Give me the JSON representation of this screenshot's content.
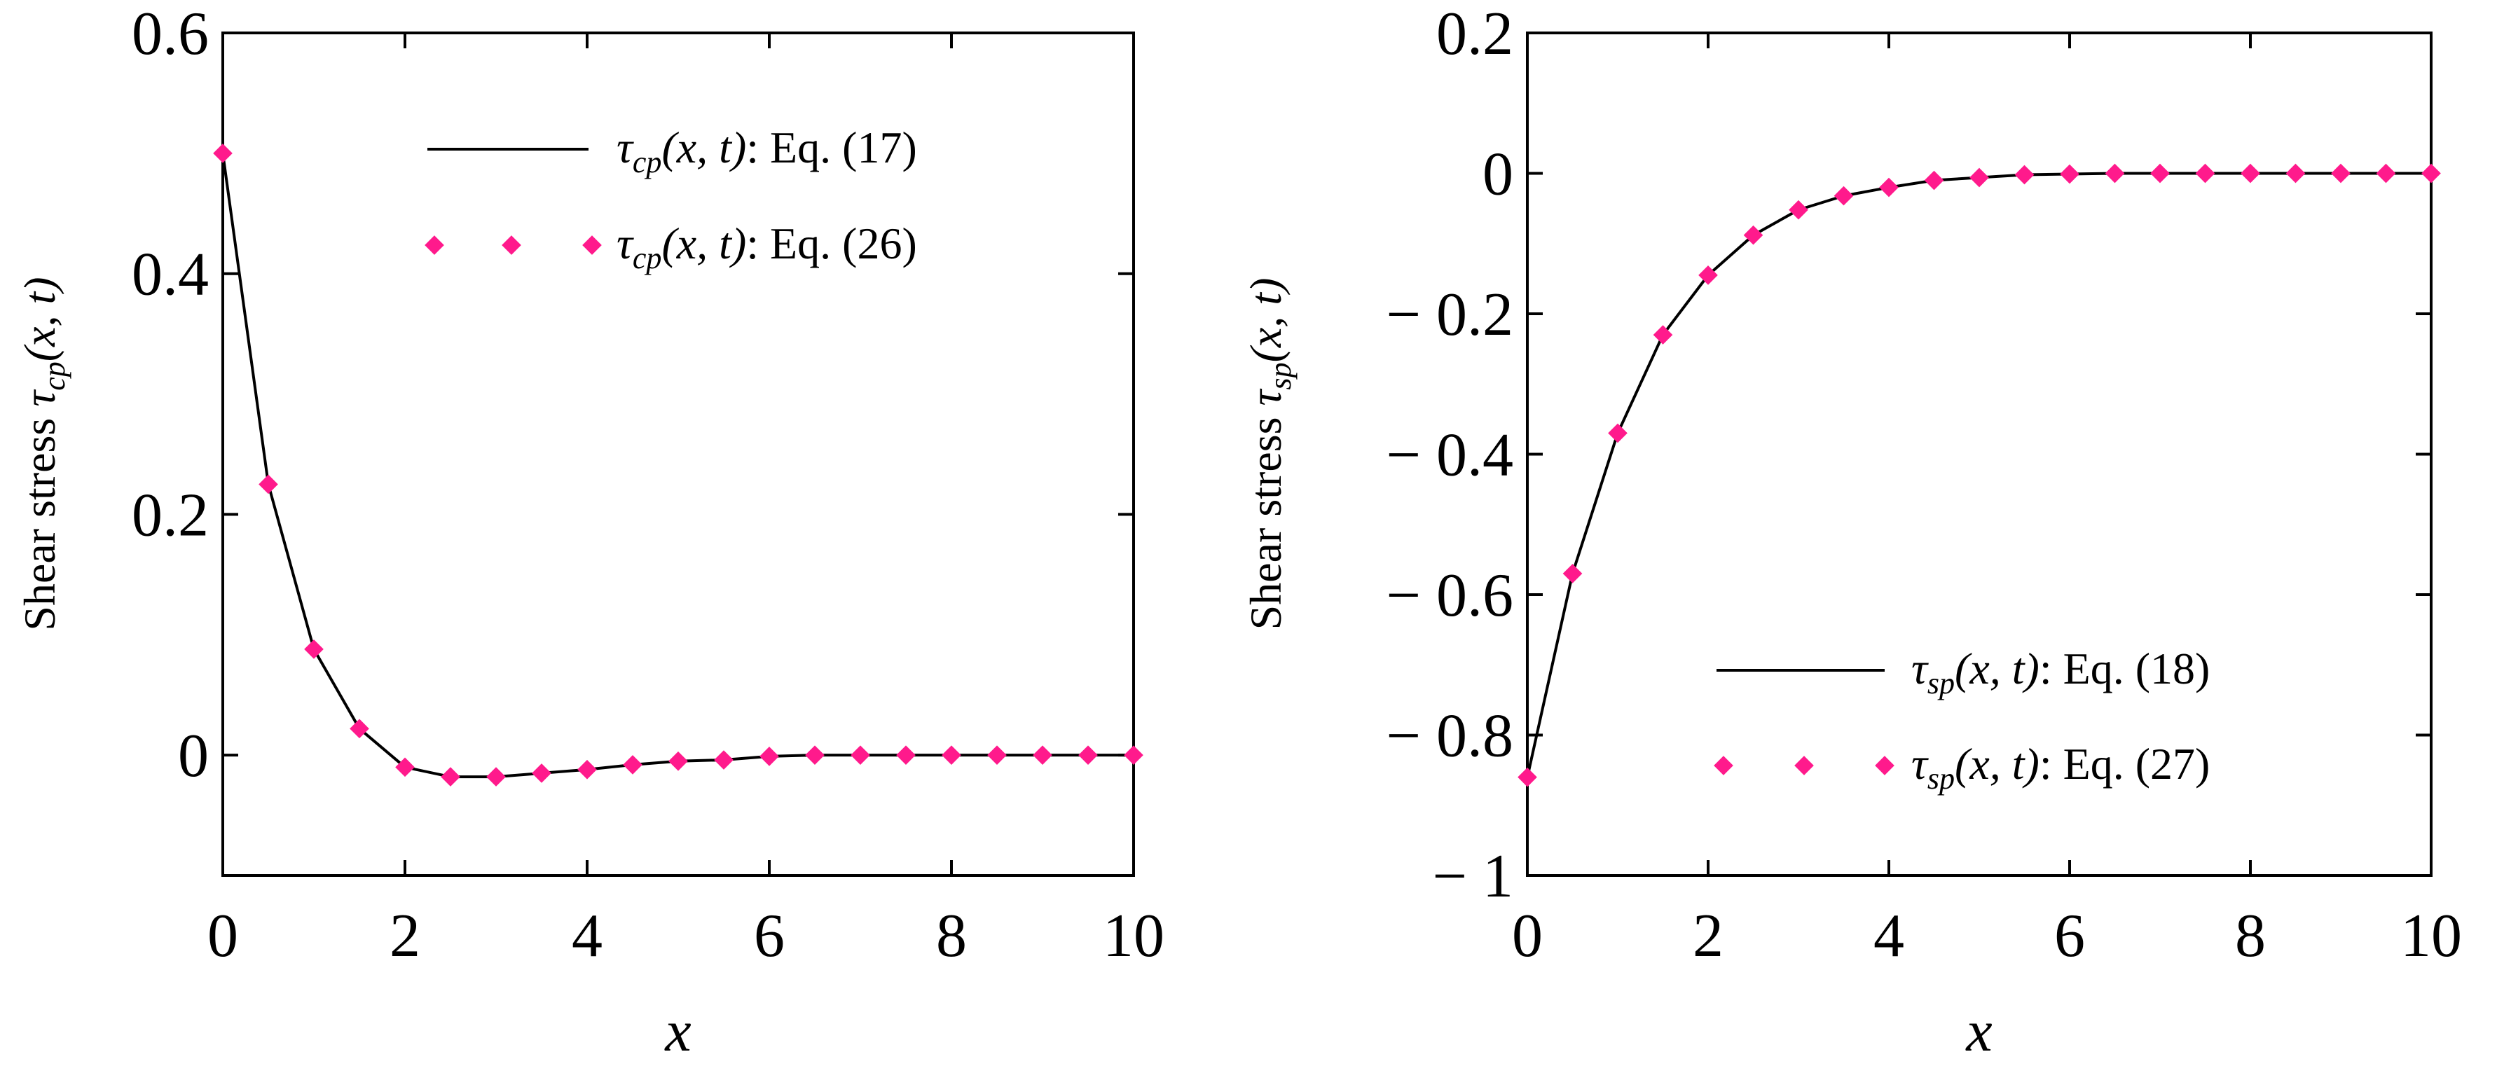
{
  "marker_color": "#ff1a8c",
  "line_color": "#000000",
  "chart_data": [
    {
      "type": "line",
      "xlabel": "x",
      "ylabel": {
        "prefix": "Shear stress ",
        "symbol": "τ",
        "sub": "cp",
        "args": "(x, t)"
      },
      "xlim": [
        0,
        10
      ],
      "ylim": [
        -0.1,
        0.6
      ],
      "xticks": [
        0,
        2,
        4,
        6,
        8,
        10
      ],
      "yticks": [
        0,
        0.2,
        0.4,
        0.6
      ],
      "xtick_labels": [
        "0",
        "2",
        "4",
        "6",
        "8",
        "10"
      ],
      "ytick_labels": [
        "0",
        "0.2",
        "0.4",
        "0.6"
      ],
      "legend_position": "top-right",
      "series": [
        {
          "name": "τcp(x,t): Eq. (17)",
          "legend": {
            "symbol": "τ",
            "sub": "cp",
            "args": "(x, t)",
            "suffix": ": Eq. (17)"
          },
          "style": "solid-line",
          "x": [
            0,
            0.5,
            1,
            1.5,
            2,
            2.5,
            3,
            3.5,
            4,
            4.5,
            5,
            5.5,
            6,
            6.5,
            7,
            7.5,
            8,
            8.5,
            9,
            9.5,
            10
          ],
          "y": [
            0.5,
            0.225,
            0.088,
            0.022,
            -0.01,
            -0.018,
            -0.018,
            -0.015,
            -0.012,
            -0.008,
            -0.005,
            -0.004,
            -0.001,
            0,
            0,
            0,
            0,
            0,
            0,
            0,
            0
          ]
        },
        {
          "name": "τcp(x,t): Eq. (26)",
          "legend": {
            "symbol": "τ",
            "sub": "cp",
            "args": "(x, t)",
            "suffix": ": Eq. (26)"
          },
          "style": "markers",
          "x": [
            0,
            0.5,
            1,
            1.5,
            2,
            2.5,
            3,
            3.5,
            4,
            4.5,
            5,
            5.5,
            6,
            6.5,
            7,
            7.5,
            8,
            8.5,
            9,
            9.5,
            10
          ],
          "y": [
            0.5,
            0.225,
            0.088,
            0.022,
            -0.01,
            -0.018,
            -0.018,
            -0.015,
            -0.012,
            -0.008,
            -0.005,
            -0.004,
            -0.001,
            0,
            0,
            0,
            0,
            0,
            0,
            0,
            0
          ]
        }
      ]
    },
    {
      "type": "line",
      "xlabel": "x",
      "ylabel": {
        "prefix": "Shear stress ",
        "symbol": "τ",
        "sub": "sp",
        "args": "(x, t)"
      },
      "xlim": [
        0,
        10
      ],
      "ylim": [
        -1,
        0.2
      ],
      "xticks": [
        0,
        2,
        4,
        6,
        8,
        10
      ],
      "yticks": [
        -1,
        -0.8,
        -0.6,
        -0.4,
        -0.2,
        0,
        0.2
      ],
      "xtick_labels": [
        "0",
        "2",
        "4",
        "6",
        "8",
        "10"
      ],
      "ytick_labels": [
        "− 1",
        "− 0.8",
        "− 0.6",
        "− 0.4",
        "− 0.2",
        "0",
        "0.2"
      ],
      "legend_position": "bottom-right",
      "series": [
        {
          "name": "τsp(x,t): Eq. (18)",
          "legend": {
            "symbol": "τ",
            "sub": "sp",
            "args": "(x, t)",
            "suffix": ": Eq. (18)"
          },
          "style": "solid-line",
          "x": [
            0,
            0.5,
            1,
            1.5,
            2,
            2.5,
            3,
            3.5,
            4,
            4.5,
            5,
            5.5,
            6,
            6.5,
            7,
            7.5,
            8,
            8.5,
            9,
            9.5,
            10
          ],
          "y": [
            -0.86,
            -0.57,
            -0.37,
            -0.23,
            -0.145,
            -0.088,
            -0.052,
            -0.032,
            -0.02,
            -0.01,
            -0.006,
            -0.002,
            -0.001,
            0,
            0,
            0,
            0,
            0,
            0,
            0,
            0
          ]
        },
        {
          "name": "τsp(x,t): Eq. (27)",
          "legend": {
            "symbol": "τ",
            "sub": "sp",
            "args": "(x, t)",
            "suffix": ": Eq. (27)"
          },
          "style": "markers",
          "x": [
            0,
            0.5,
            1,
            1.5,
            2,
            2.5,
            3,
            3.5,
            4,
            4.5,
            5,
            5.5,
            6,
            6.5,
            7,
            7.5,
            8,
            8.5,
            9,
            9.5,
            10
          ],
          "y": [
            -0.86,
            -0.57,
            -0.37,
            -0.23,
            -0.145,
            -0.088,
            -0.052,
            -0.032,
            -0.02,
            -0.01,
            -0.006,
            -0.002,
            -0.001,
            0,
            0,
            0,
            0,
            0,
            0,
            0,
            0
          ]
        }
      ]
    }
  ]
}
